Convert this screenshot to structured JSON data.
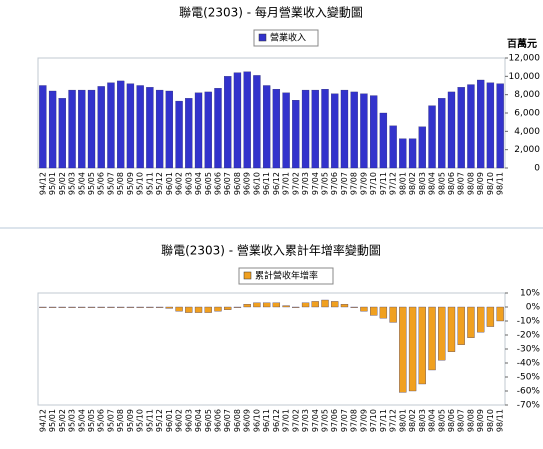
{
  "chart_data": [
    {
      "type": "bar",
      "title": "聯電(2303) - 每月營業收入變動圖",
      "y_label": "百萬元",
      "categories": [
        "94/12",
        "95/01",
        "95/02",
        "95/03",
        "95/04",
        "95/05",
        "95/06",
        "95/07",
        "95/08",
        "95/09",
        "95/10",
        "95/11",
        "95/12",
        "96/01",
        "96/02",
        "96/03",
        "96/04",
        "96/05",
        "96/06",
        "96/07",
        "96/08",
        "96/09",
        "96/10",
        "96/11",
        "96/12",
        "97/01",
        "97/02",
        "97/03",
        "97/04",
        "97/05",
        "97/06",
        "97/07",
        "97/08",
        "97/09",
        "97/10",
        "97/11",
        "97/12",
        "98/01",
        "98/02",
        "98/03",
        "98/04",
        "98/05",
        "98/06",
        "98/07",
        "98/08",
        "98/09",
        "98/10",
        "98/11"
      ],
      "series": [
        {
          "name": "營業收入",
          "color": "#3333cc",
          "values": [
            9000,
            8400,
            7600,
            8500,
            8500,
            8500,
            8900,
            9300,
            9500,
            9200,
            9000,
            8800,
            8500,
            8400,
            7300,
            7600,
            8200,
            8300,
            8700,
            10000,
            10400,
            10500,
            10100,
            9000,
            8600,
            8200,
            7400,
            8500,
            8500,
            8600,
            8100,
            8500,
            8300,
            8100,
            7900,
            6000,
            4600,
            3200,
            3200,
            4500,
            6800,
            7600,
            8300,
            8800,
            9100,
            9600,
            9300,
            9200
          ]
        }
      ],
      "ylim": [
        0,
        12000
      ],
      "yticks": [
        0,
        {
          "value": 2000,
          "label": "2,000"
        },
        {
          "value": 4000,
          "label": "4,000"
        },
        {
          "value": 6000,
          "label": "6,000"
        },
        {
          "value": 8000,
          "label": "8,000"
        },
        {
          "value": 10000,
          "label": "10,000"
        },
        {
          "value": 12000,
          "label": "12,000"
        }
      ]
    },
    {
      "type": "bar",
      "title": "聯電(2303) -  營業收入累計年增率變動圖",
      "categories": [
        "94/12",
        "95/01",
        "95/02",
        "95/03",
        "95/04",
        "95/05",
        "95/06",
        "95/07",
        "95/08",
        "95/09",
        "95/10",
        "95/11",
        "95/12",
        "96/01",
        "96/02",
        "96/03",
        "96/04",
        "96/05",
        "96/06",
        "96/07",
        "96/08",
        "96/09",
        "96/10",
        "96/11",
        "96/12",
        "97/01",
        "97/02",
        "97/03",
        "97/04",
        "97/05",
        "97/06",
        "97/07",
        "97/08",
        "97/09",
        "97/10",
        "97/11",
        "97/12",
        "98/01",
        "98/02",
        "98/03",
        "98/04",
        "98/05",
        "98/06",
        "98/07",
        "98/08",
        "98/09",
        "98/10",
        "98/11"
      ],
      "series": [
        {
          "name": "累計營收年增率",
          "color": "#f0a020",
          "values": [
            0,
            0,
            0,
            0,
            0,
            0,
            0,
            0,
            0,
            0,
            0,
            0,
            0,
            -1,
            -3,
            -4,
            -4,
            -4,
            -3,
            -2,
            0,
            2,
            3,
            3,
            3,
            1,
            0,
            3,
            4,
            5,
            4,
            2,
            0,
            -3,
            -6,
            -8,
            -11,
            -61,
            -60,
            -55,
            -45,
            -38,
            -32,
            -27,
            -22,
            -18,
            -14,
            -10
          ]
        }
      ],
      "ylim": [
        -70,
        10
      ],
      "yticks": [
        {
          "value": 10,
          "label": "10%"
        },
        {
          "value": 0,
          "label": "0%"
        },
        {
          "value": -10,
          "label": "-10%"
        },
        {
          "value": -20,
          "label": "-20%"
        },
        {
          "value": -30,
          "label": "-30%"
        },
        {
          "value": -40,
          "label": "-40%"
        },
        {
          "value": -50,
          "label": "-50%"
        },
        {
          "value": -60,
          "label": "-60%"
        },
        {
          "value": -70,
          "label": "-70%"
        }
      ]
    }
  ]
}
